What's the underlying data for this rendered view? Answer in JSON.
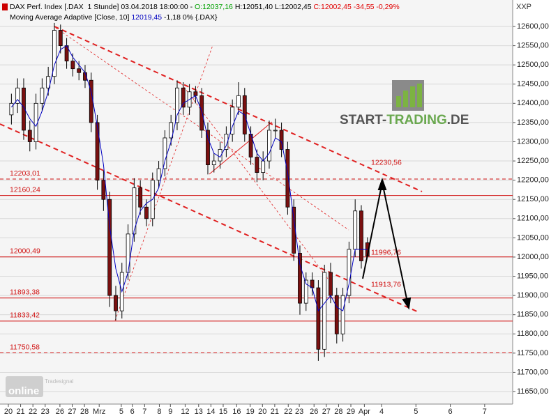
{
  "chart_data": {
    "type": "candlestick",
    "header": [
      [
        {
          "text": "DAX Perf. Index [.DAX  1 Stunde] 03.04.2018 18:00:00 - ",
          "color": "#000000"
        },
        {
          "text": "O:12037,16",
          "color": "#00a000"
        },
        {
          "text": " H:12051,40 L:12002,45 ",
          "color": "#000000"
        },
        {
          "text": "C:12002,45 -34,55 -0,29%",
          "color": "#e00000"
        }
      ],
      [
        {
          "text": "Moving Average Adaptive [Close, 10] ",
          "color": "#000000"
        },
        {
          "text": "12019,45",
          "color": "#0000c0"
        },
        {
          "text": " -1,18 0% {.DAX}",
          "color": "#000000"
        }
      ]
    ],
    "symbol": "XXP",
    "logo": [
      "START-",
      "TRADING",
      ".DE"
    ],
    "brand": [
      "Tradesignal",
      "online"
    ],
    "up_color": "#ffffff",
    "down_color": "#7a1010",
    "outline_color": "#000000",
    "grid": true,
    "xlim": [
      -0.68,
      41.08
    ],
    "ylim": [
      11617.4,
      12668.9
    ],
    "xticks": [
      {
        "value": 0,
        "label": "20"
      },
      {
        "value": 1,
        "label": "21"
      },
      {
        "value": 2,
        "label": "22"
      },
      {
        "value": 3,
        "label": "23"
      },
      {
        "value": 4.2,
        "label": "26"
      },
      {
        "value": 5.2,
        "label": "27"
      },
      {
        "value": 6.2,
        "label": "28"
      },
      {
        "value": 7.4,
        "label": "Mrz"
      },
      {
        "value": 9.2,
        "label": "5"
      },
      {
        "value": 10.1,
        "label": "6"
      },
      {
        "value": 11.1,
        "label": "7"
      },
      {
        "value": 12.3,
        "label": "8"
      },
      {
        "value": 13.2,
        "label": "9"
      },
      {
        "value": 14.4,
        "label": "12"
      },
      {
        "value": 15.5,
        "label": "13"
      },
      {
        "value": 16.5,
        "label": "14"
      },
      {
        "value": 17.5,
        "label": "15"
      },
      {
        "value": 18.6,
        "label": "16"
      },
      {
        "value": 19.7,
        "label": "19"
      },
      {
        "value": 20.7,
        "label": "20"
      },
      {
        "value": 21.7,
        "label": "21"
      },
      {
        "value": 22.8,
        "label": "22"
      },
      {
        "value": 23.7,
        "label": "23"
      },
      {
        "value": 24.9,
        "label": "26"
      },
      {
        "value": 25.9,
        "label": "27"
      },
      {
        "value": 26.9,
        "label": "28"
      },
      {
        "value": 27.9,
        "label": "29"
      },
      {
        "value": 29,
        "label": "Apr"
      },
      {
        "value": 30.4,
        "label": "4"
      },
      {
        "value": 33.2,
        "label": "5"
      },
      {
        "value": 36,
        "label": "6"
      },
      {
        "value": 38.8,
        "label": "7"
      }
    ],
    "yticks": [
      {
        "value": 11650,
        "label": "11650,00"
      },
      {
        "value": 11700,
        "label": "11700,00"
      },
      {
        "value": 11750,
        "label": "11750,00"
      },
      {
        "value": 11800,
        "label": "11800,00"
      },
      {
        "value": 11850,
        "label": "11850,00"
      },
      {
        "value": 11900,
        "label": "11900,00"
      },
      {
        "value": 11950,
        "label": "11950,00"
      },
      {
        "value": 12000,
        "label": "12000,00"
      },
      {
        "value": 12050,
        "label": "12050,00"
      },
      {
        "value": 12100,
        "label": "12100,00"
      },
      {
        "value": 12150,
        "label": "12150,00"
      },
      {
        "value": 12200,
        "label": "12200,00"
      },
      {
        "value": 12250,
        "label": "12250,00"
      },
      {
        "value": 12300,
        "label": "12300,00"
      },
      {
        "value": 12350,
        "label": "12350,00"
      },
      {
        "value": 12400,
        "label": "12400,00"
      },
      {
        "value": 12450,
        "label": "12450,00"
      },
      {
        "value": 12500,
        "label": "12500,00"
      },
      {
        "value": 12550,
        "label": "12550,00"
      },
      {
        "value": 12600,
        "label": "12600,00"
      }
    ],
    "levels": [
      {
        "value": 12203.01,
        "label": "12203,01",
        "style": "dashed"
      },
      {
        "value": 12160.24,
        "label": "12160,24",
        "style": "solid"
      },
      {
        "value": 12000.49,
        "label": "12000,49",
        "style": "solid"
      },
      {
        "value": 11893.38,
        "label": "11893,38",
        "style": "solid"
      },
      {
        "value": 11833.42,
        "label": "11833,42",
        "style": "solid"
      },
      {
        "value": 11750.58,
        "label": "11750,58",
        "style": "dashed"
      }
    ],
    "level_color": "#d01010",
    "annotations": [
      {
        "value": 12230.56,
        "label": "12230,56"
      },
      {
        "value": 11996.76,
        "label": "11996,76"
      },
      {
        "value": 11913.76,
        "label": "11913,76"
      }
    ],
    "x": [
      0.25,
      0.75,
      1.25,
      1.75,
      2.25,
      2.75,
      3.25,
      3.75,
      4.25,
      4.75,
      5.25,
      5.75,
      6.25,
      6.75,
      7.25,
      7.75,
      8.25,
      8.75,
      9.25,
      9.75,
      10.25,
      10.75,
      11.25,
      11.75,
      12.25,
      12.75,
      13.25,
      13.75,
      14.25,
      14.75,
      15.25,
      15.75,
      16.25,
      16.75,
      17.25,
      17.75,
      18.25,
      18.75,
      19.25,
      19.75,
      20.25,
      20.75,
      21.25,
      21.75,
      22.25,
      22.75,
      23.25,
      23.75,
      24.25,
      24.75,
      25.25,
      25.75,
      26.25,
      26.75,
      27.25,
      27.75,
      28.25,
      28.75,
      29.25
    ],
    "open": [
      12370,
      12400,
      12440,
      12330,
      12300,
      12400,
      12440,
      12470,
      12590,
      12550,
      12510,
      12490,
      12480,
      12460,
      12350,
      12200,
      12150,
      11900,
      11860,
      11960,
      12060,
      12180,
      12130,
      12100,
      12200,
      12230,
      12310,
      12350,
      12440,
      12390,
      12430,
      12420,
      12330,
      12240,
      12250,
      12280,
      12320,
      12390,
      12420,
      12320,
      12260,
      12220,
      12250,
      12330,
      12330,
      12280,
      12130,
      12010,
      11880,
      11940,
      11920,
      11760,
      11960,
      11900,
      11800,
      11900,
      12020,
      12120,
      12037.16
    ],
    "high": [
      12425,
      12465,
      12465,
      12355,
      12425,
      12465,
      12495,
      12610,
      12605,
      12570,
      12530,
      12510,
      12500,
      12480,
      12370,
      12225,
      12170,
      11925,
      11985,
      12085,
      12205,
      12200,
      12150,
      12220,
      12250,
      12330,
      12370,
      12460,
      12455,
      12450,
      12445,
      12440,
      12350,
      12270,
      12300,
      12340,
      12410,
      12455,
      12440,
      12340,
      12280,
      12275,
      12355,
      12360,
      12350,
      12300,
      12150,
      12030,
      11960,
      11960,
      11940,
      11980,
      11985,
      11920,
      11920,
      12040,
      12150,
      12135,
      12051.4
    ],
    "low": [
      12345,
      12375,
      12305,
      12275,
      12280,
      12380,
      12420,
      12450,
      12530,
      12490,
      12470,
      12460,
      12440,
      12325,
      12175,
      12120,
      11870,
      11835,
      11840,
      11940,
      12040,
      12110,
      12080,
      12080,
      12180,
      12210,
      12290,
      12330,
      12370,
      12370,
      12400,
      12310,
      12215,
      12220,
      12230,
      12260,
      12300,
      12370,
      12300,
      12240,
      12195,
      12200,
      12230,
      12310,
      12260,
      12110,
      11990,
      11850,
      11860,
      11900,
      11730,
      11740,
      11880,
      11775,
      11780,
      11880,
      12000,
      11970,
      12002.45
    ],
    "close": [
      12400,
      12440,
      12330,
      12300,
      12400,
      12440,
      12470,
      12590,
      12550,
      12510,
      12490,
      12480,
      12460,
      12350,
      12200,
      12150,
      11900,
      11860,
      11960,
      12060,
      12180,
      12130,
      12100,
      12200,
      12230,
      12310,
      12350,
      12440,
      12390,
      12430,
      12420,
      12330,
      12240,
      12250,
      12280,
      12320,
      12390,
      12420,
      12320,
      12260,
      12220,
      12250,
      12330,
      12330,
      12280,
      12130,
      12010,
      11880,
      11940,
      11920,
      11760,
      11960,
      11900,
      11800,
      11900,
      12020,
      12120,
      11990,
      12002.45
    ],
    "ma": {
      "color": "#0000c0",
      "values": [
        12390,
        12410,
        12390,
        12360,
        12340,
        12380,
        12430,
        12500,
        12540,
        12550,
        12520,
        12500,
        12480,
        12430,
        12340,
        12240,
        12080,
        11970,
        11910,
        11960,
        12070,
        12120,
        12140,
        12150,
        12180,
        12250,
        12300,
        12370,
        12400,
        12410,
        12420,
        12380,
        12310,
        12270,
        12260,
        12290,
        12340,
        12380,
        12370,
        12320,
        12270,
        12250,
        12270,
        12310,
        12300,
        12220,
        12100,
        11980,
        11930,
        11920,
        11860,
        11880,
        11900,
        11870,
        11860,
        11930,
        12020,
        12020,
        12019.45
      ]
    }
  }
}
